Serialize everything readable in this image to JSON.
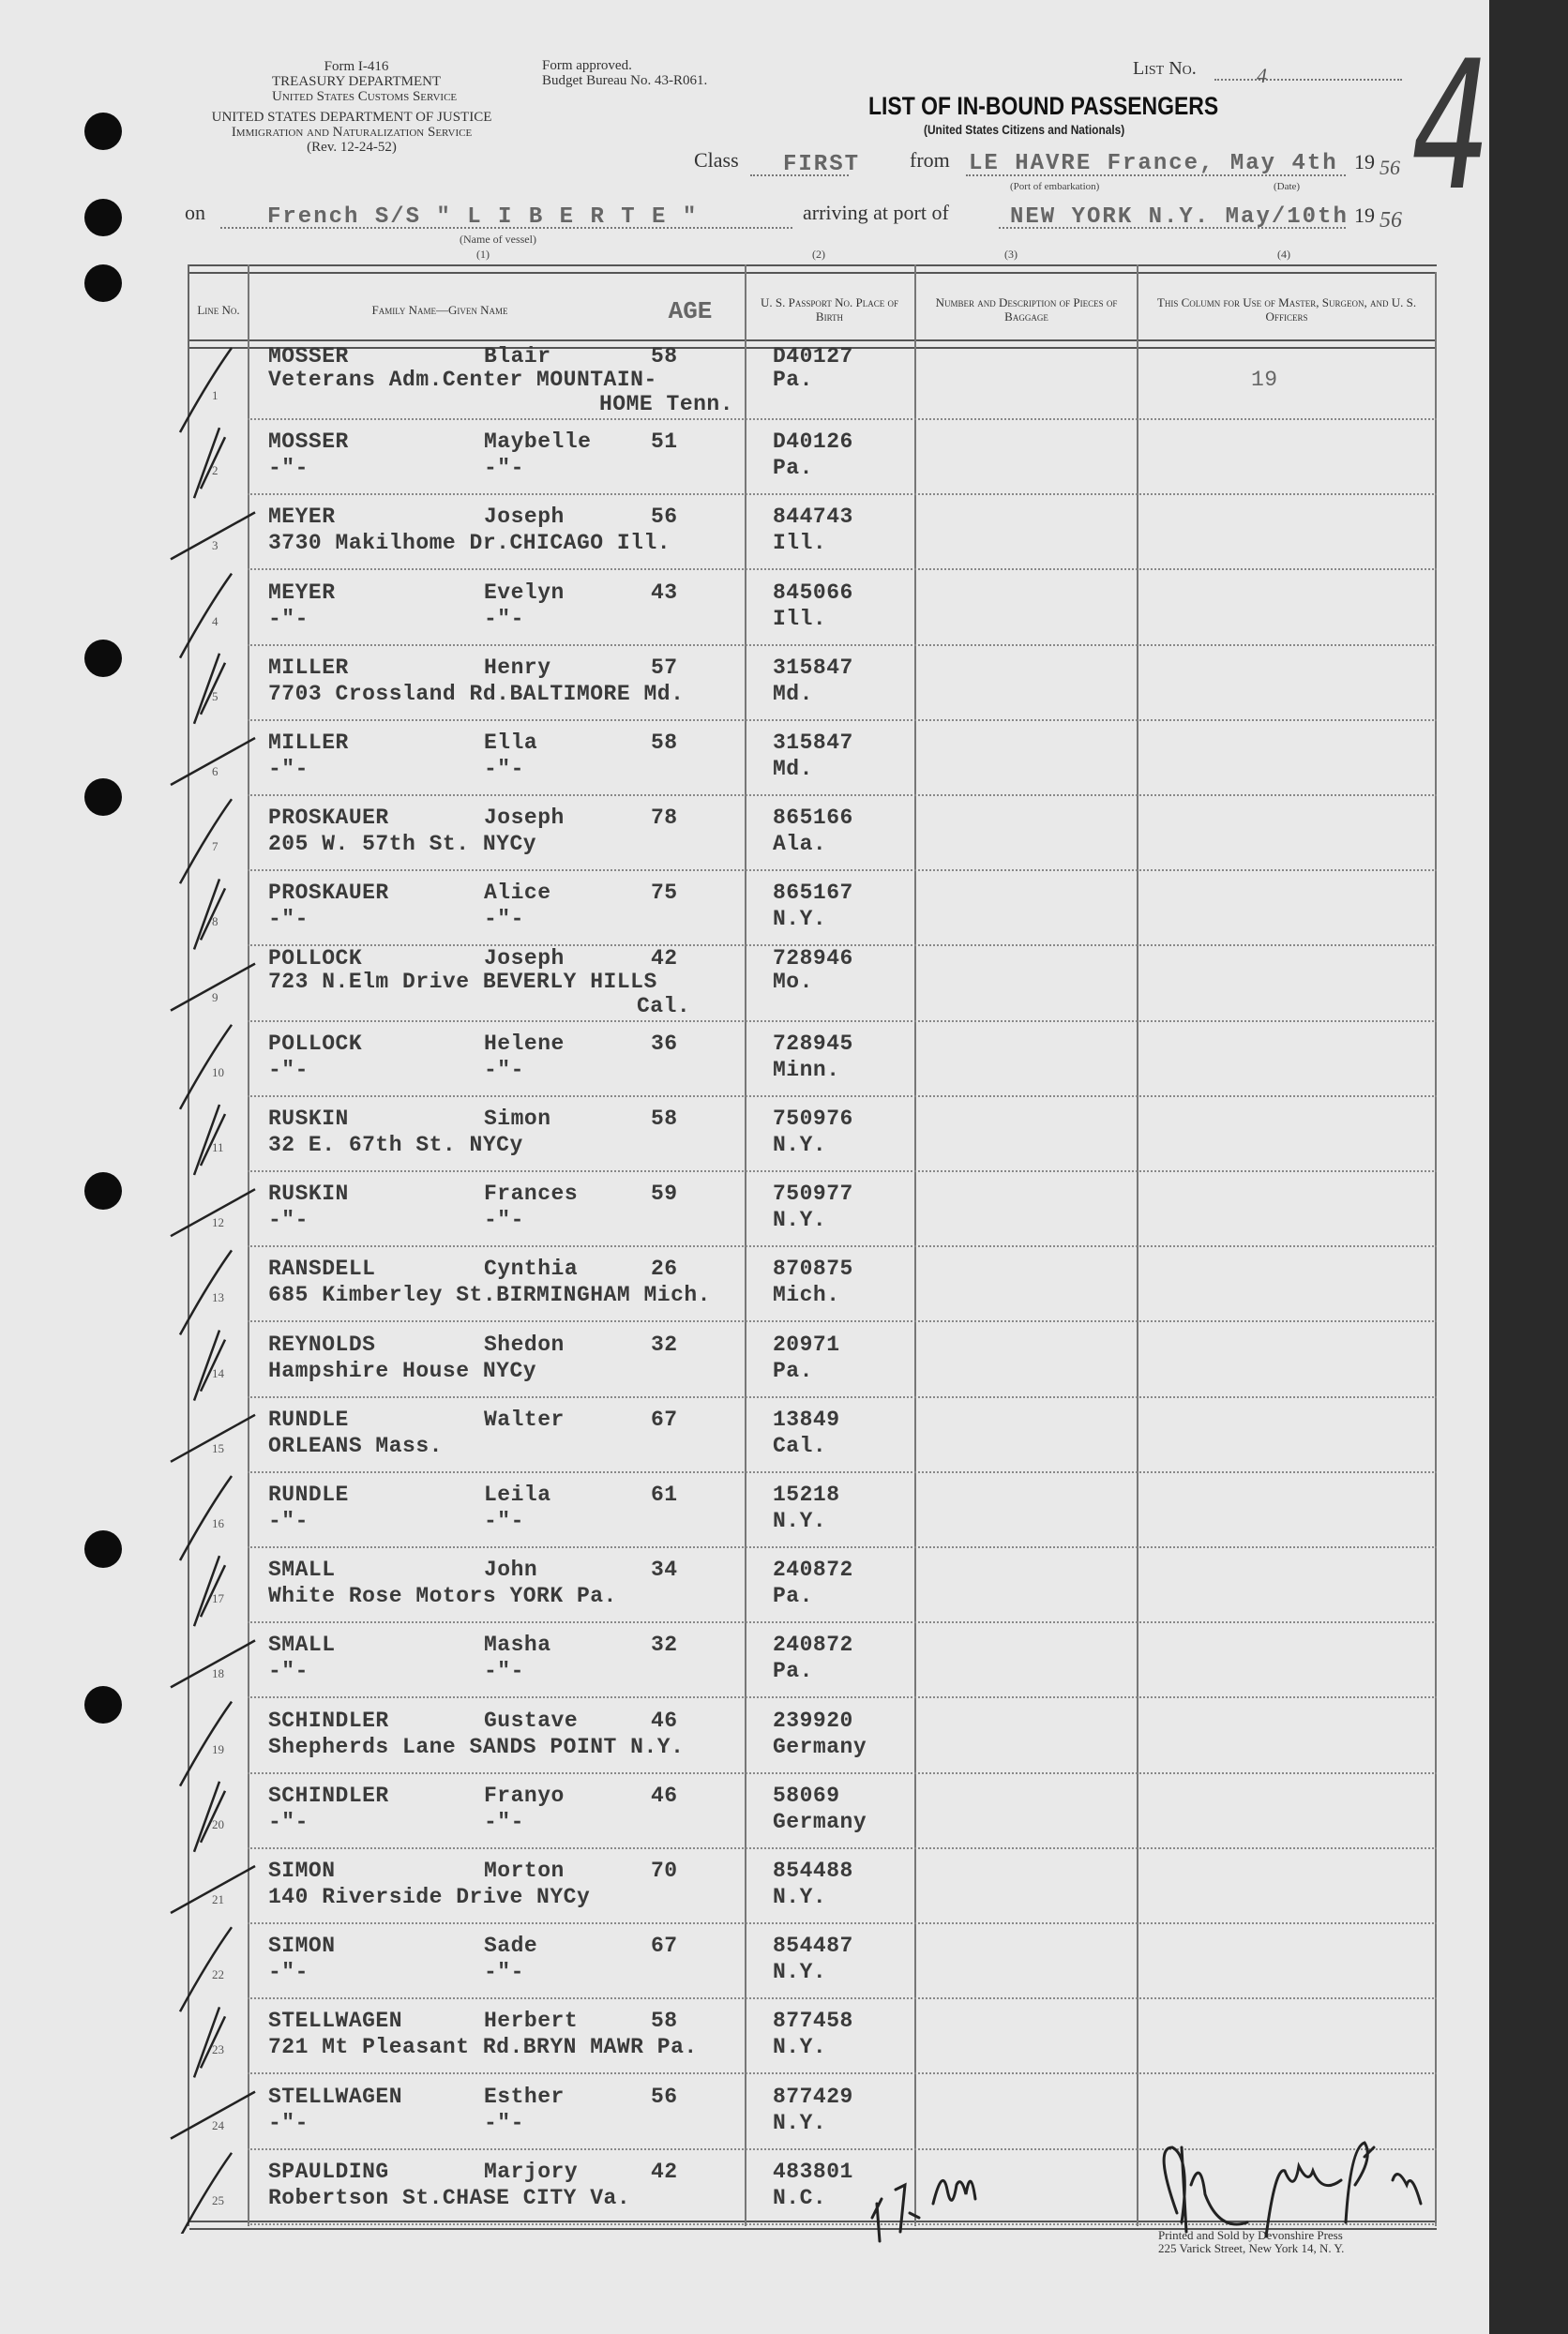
{
  "form": {
    "form_number": "Form I-416",
    "treasury": "TREASURY DEPARTMENT",
    "customs": "United States Customs Service",
    "justice": "UNITED STATES DEPARTMENT OF JUSTICE",
    "ins": "Immigration and Naturalization Service",
    "rev": "(Rev. 12-24-52)",
    "approved": "Form approved.",
    "budget": "Budget Bureau No. 43-R061.",
    "list_label": "List No.",
    "list_value": "4",
    "big_number": "4",
    "title": "LIST OF IN-BOUND PASSENGERS",
    "subtitle": "(United States Citizens and Nationals)"
  },
  "voyage": {
    "class_label": "Class",
    "class_value": "FIRST",
    "from_label": "from",
    "from_value": "LE HAVRE France, May 4th",
    "port_caption": "(Port of embarkation)",
    "date_caption": "(Date)",
    "year_prefix": "19",
    "year_value": "56",
    "on_label": "on",
    "vessel_value": "French S/S \" L I B E R T E \"",
    "vessel_caption": "(Name of vessel)",
    "arriving_label": "arriving at port of",
    "arriving_value": "NEW YORK N.Y. May/10th",
    "year2_prefix": "19",
    "year2_value": "56",
    "col_refs": [
      "(1)",
      "(2)",
      "(3)",
      "(4)"
    ]
  },
  "table": {
    "headers": {
      "line_no": "Line No.",
      "name": "Family Name—Given Name",
      "age": "AGE",
      "passport": "U. S. Passport No. Place of Birth",
      "baggage": "Number and Description of Pieces of Baggage",
      "officers": "This Column for Use of Master, Surgeon, and U. S. Officers"
    },
    "rows": [
      {
        "no": "1",
        "family": "MOSSER",
        "given": "Blair",
        "age": "58",
        "passport": "D40127",
        "address": "Veterans Adm.Center MOUNTAIN-",
        "given2": "",
        "birth": "Pa.",
        "extra": "HOME Tenn.",
        "officer": "19"
      },
      {
        "no": "2",
        "family": "MOSSER",
        "given": "Maybelle",
        "age": "51",
        "passport": "D40126",
        "address": "-\"-",
        "given2": "-\"-",
        "birth": "Pa.",
        "extra": "",
        "officer": ""
      },
      {
        "no": "3",
        "family": "MEYER",
        "given": "Joseph",
        "age": "56",
        "passport": "844743",
        "address": "3730 Makilhome Dr.CHICAGO Ill.",
        "given2": "",
        "birth": "Ill.",
        "extra": "",
        "officer": ""
      },
      {
        "no": "4",
        "family": "MEYER",
        "given": "Evelyn",
        "age": "43",
        "passport": "845066",
        "address": "-\"-",
        "given2": "-\"-",
        "birth": "Ill.",
        "extra": "",
        "officer": ""
      },
      {
        "no": "5",
        "family": "MILLER",
        "given": "Henry",
        "age": "57",
        "passport": "315847",
        "address": "7703 Crossland Rd.BALTIMORE Md.",
        "given2": "",
        "birth": "Md.",
        "extra": "",
        "officer": ""
      },
      {
        "no": "6",
        "family": "MILLER",
        "given": "Ella",
        "age": "58",
        "passport": "315847",
        "address": "-\"-",
        "given2": "-\"-",
        "birth": "Md.",
        "extra": "",
        "officer": ""
      },
      {
        "no": "7",
        "family": "PROSKAUER",
        "given": "Joseph",
        "age": "78",
        "passport": "865166",
        "address": "205 W. 57th St. NYCy",
        "given2": "",
        "birth": "Ala.",
        "extra": "",
        "officer": ""
      },
      {
        "no": "8",
        "family": "PROSKAUER",
        "given": "Alice",
        "age": "75",
        "passport": "865167",
        "address": "-\"-",
        "given2": "-\"-",
        "birth": "N.Y.",
        "extra": "",
        "officer": ""
      },
      {
        "no": "9",
        "family": "POLLOCK",
        "given": "Joseph",
        "age": "42",
        "passport": "728946",
        "address": "723 N.Elm Drive BEVERLY HILLS",
        "given2": "",
        "birth": "Mo.",
        "extra": "Cal.",
        "officer": ""
      },
      {
        "no": "10",
        "family": "POLLOCK",
        "given": "Helene",
        "age": "36",
        "passport": "728945",
        "address": "-\"-",
        "given2": "-\"-",
        "birth": "Minn.",
        "extra": "",
        "officer": ""
      },
      {
        "no": "11",
        "family": "RUSKIN",
        "given": "Simon",
        "age": "58",
        "passport": "750976",
        "address": "32 E. 67th St. NYCy",
        "given2": "",
        "birth": "N.Y.",
        "extra": "",
        "officer": ""
      },
      {
        "no": "12",
        "family": "RUSKIN",
        "given": "Frances",
        "age": "59",
        "passport": "750977",
        "address": "-\"-",
        "given2": "-\"-",
        "birth": "N.Y.",
        "extra": "",
        "officer": ""
      },
      {
        "no": "13",
        "family": "RANSDELL",
        "given": "Cynthia",
        "age": "26",
        "passport": "870875",
        "address": "685 Kimberley St.BIRMINGHAM Mich.",
        "given2": "",
        "birth": "Mich.",
        "extra": "",
        "officer": ""
      },
      {
        "no": "14",
        "family": "REYNOLDS",
        "given": "Shedon",
        "age": "32",
        "passport": "20971",
        "address": "Hampshire House NYCy",
        "given2": "",
        "birth": "Pa.",
        "extra": "",
        "officer": ""
      },
      {
        "no": "15",
        "family": "RUNDLE",
        "given": "Walter",
        "age": "67",
        "passport": "13849",
        "address": "ORLEANS Mass.",
        "given2": "",
        "birth": "Cal.",
        "extra": "",
        "officer": ""
      },
      {
        "no": "16",
        "family": "RUNDLE",
        "given": "Leila",
        "age": "61",
        "passport": "15218",
        "address": "-\"-",
        "given2": "-\"-",
        "birth": "N.Y.",
        "extra": "",
        "officer": ""
      },
      {
        "no": "17",
        "family": "SMALL",
        "given": "John",
        "age": "34",
        "passport": "240872",
        "address": "White Rose Motors YORK Pa.",
        "given2": "",
        "birth": "Pa.",
        "extra": "",
        "officer": ""
      },
      {
        "no": "18",
        "family": "SMALL",
        "given": "Masha",
        "age": "32",
        "passport": "240872",
        "address": "-\"-",
        "given2": "-\"-",
        "birth": "Pa.",
        "extra": "",
        "officer": ""
      },
      {
        "no": "19",
        "family": "SCHINDLER",
        "given": "Gustave",
        "age": "46",
        "passport": "239920",
        "address": "Shepherds Lane SANDS POINT N.Y.",
        "given2": "",
        "birth": "Germany",
        "extra": "",
        "officer": ""
      },
      {
        "no": "20",
        "family": "SCHINDLER",
        "given": "Franyo",
        "age": "46",
        "passport": "58069",
        "address": "-\"-",
        "given2": "-\"-",
        "birth": "Germany",
        "extra": "",
        "officer": ""
      },
      {
        "no": "21",
        "family": "SIMON",
        "given": "Morton",
        "age": "70",
        "passport": "854488",
        "address": "140 Riverside Drive NYCy",
        "given2": "",
        "birth": "N.Y.",
        "extra": "",
        "officer": ""
      },
      {
        "no": "22",
        "family": "SIMON",
        "given": "Sade",
        "age": "67",
        "passport": "854487",
        "address": "-\"-",
        "given2": "-\"-",
        "birth": "N.Y.",
        "extra": "",
        "officer": ""
      },
      {
        "no": "23",
        "family": "STELLWAGEN",
        "given": "Herbert",
        "age": "58",
        "passport": "877458",
        "address": "721 Mt Pleasant Rd.BRYN MAWR Pa.",
        "given2": "",
        "birth": "N.Y.",
        "extra": "",
        "officer": ""
      },
      {
        "no": "24",
        "family": "STELLWAGEN",
        "given": "Esther",
        "age": "56",
        "passport": "877429",
        "address": "-\"-",
        "given2": "-\"-",
        "birth": "N.Y.",
        "extra": "",
        "officer": ""
      },
      {
        "no": "25",
        "family": "SPAULDING",
        "given": "Marjory",
        "age": "42",
        "passport": "483801",
        "address": "Robertson St.CHASE CITY Va.",
        "given2": "",
        "birth": "N.C.",
        "extra": "",
        "officer": ""
      }
    ]
  },
  "footer": {
    "printer_line1": "Printed and Sold by Devonshire Press",
    "printer_line2": "225 Varick Street, New York 14, N. Y.",
    "handwritten_note": "#7, 8, Glasgl",
    "signature": "signature"
  },
  "colors": {
    "paper": "#e9e9e9",
    "ink": "#3a3a3a",
    "border": "#2a2a2a"
  }
}
